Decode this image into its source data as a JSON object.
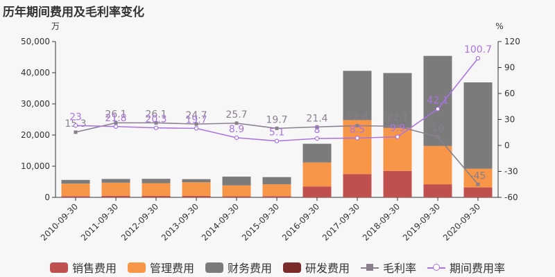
{
  "title": "历年期间费用及毛利率变化",
  "chart_data": {
    "type": "bar",
    "stacked": true,
    "categories": [
      "2010-09-30",
      "2011-09-30",
      "2012-09-30",
      "2013-09-30",
      "2014-09-30",
      "2015-09-30",
      "2016-09-30",
      "2017-09-30",
      "2018-09-30",
      "2019-09-30",
      "2020-09-30"
    ],
    "ylabel_left": "万",
    "ylabel_right": "%",
    "ylim_left": [
      0,
      50000
    ],
    "yticks_left": [
      0,
      10000,
      20000,
      30000,
      40000,
      50000
    ],
    "ytick_labels_left": [
      "0",
      "10,000",
      "20,000",
      "30,000",
      "40,000",
      "50,000"
    ],
    "ylim_right": [
      -60,
      120
    ],
    "yticks_right": [
      -60,
      -30,
      0,
      30,
      60,
      90,
      120
    ],
    "series": [
      {
        "name": "销售费用",
        "color": "#c0504d",
        "values": [
          400,
          500,
          450,
          450,
          350,
          400,
          3500,
          7500,
          8500,
          4200,
          3200
        ]
      },
      {
        "name": "管理费用",
        "color": "#f79646",
        "values": [
          4000,
          4200,
          4100,
          4400,
          3500,
          3800,
          7700,
          17300,
          13800,
          12300,
          6000
        ]
      },
      {
        "name": "财务费用",
        "color": "#7b7b7b",
        "values": [
          1200,
          1200,
          1400,
          1000,
          2800,
          2300,
          6000,
          15800,
          17600,
          28900,
          27700
        ]
      },
      {
        "name": "研发费用",
        "color": "#7b2a2a",
        "values": [
          0,
          0,
          0,
          0,
          0,
          0,
          0,
          0,
          0,
          0,
          0
        ]
      }
    ],
    "lines": [
      {
        "name": "毛利率",
        "color": "#8a7f8e",
        "marker": "square",
        "values": [
          15.3,
          26.1,
          26.1,
          24.7,
          25.7,
          19.7,
          21.4,
          22.8,
          22.1,
          10,
          -45
        ],
        "labels": [
          "15.3",
          "26.1",
          "26.1",
          "24.7",
          "25.7",
          "19.7",
          "21.4",
          "22.8",
          "22.1",
          "10",
          "-45"
        ]
      },
      {
        "name": "期间费用率",
        "color": "#a974e0",
        "marker": "circle",
        "values": [
          23,
          21.8,
          20.3,
          19.7,
          8.9,
          5.1,
          8,
          8.5,
          9.9,
          42.1,
          100.7
        ],
        "labels": [
          "23",
          "21.8",
          "20.3",
          "19.7",
          "8.9",
          "5.1",
          "8",
          "8.5",
          "9.9",
          "42.1",
          "100.7"
        ]
      }
    ]
  }
}
